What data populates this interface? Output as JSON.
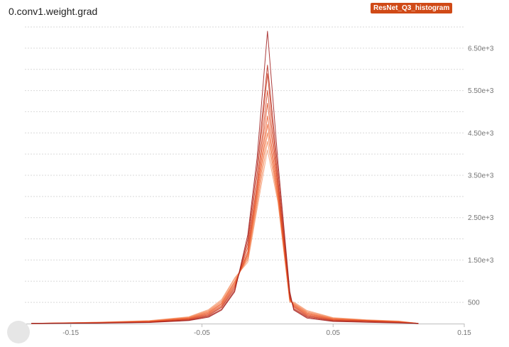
{
  "title": "0.conv1.weight.grad",
  "run_badge": "ResNet_Q3_histogram",
  "colors": {
    "badge_bg": "#d04a17",
    "series_light": "#f5a07a",
    "series_mid": "#ef5a2a",
    "series_dark": "#9e1a1a",
    "grid": "#d9d9d9",
    "tick_text": "#757575"
  },
  "chart_data": {
    "type": "line",
    "title": "0.conv1.weight.grad",
    "xlabel": "",
    "ylabel": "",
    "xlim": [
      -0.185,
      0.15
    ],
    "ylim": [
      0,
      7000
    ],
    "x_ticks": [
      -0.15,
      -0.05,
      0.05,
      0.15
    ],
    "x_tick_labels": [
      "-0.15",
      "-0.05",
      "0.05",
      "0.15"
    ],
    "y_ticks": [
      500,
      1500,
      2500,
      3500,
      4500,
      5500,
      6500
    ],
    "y_tick_labels": [
      "500",
      "1.50e+3",
      "2.50e+3",
      "3.50e+3",
      "4.50e+3",
      "5.50e+3",
      "6.50e+3"
    ],
    "grid": true,
    "y_axis_side": "right",
    "description_note": "",
    "series": [
      {
        "values": [
          [
            -0.18,
            5
          ],
          [
            -0.13,
            10
          ],
          [
            -0.09,
            25
          ],
          [
            -0.06,
            70
          ],
          [
            -0.045,
            150
          ],
          [
            -0.035,
            320
          ],
          [
            -0.025,
            750
          ],
          [
            -0.015,
            2100
          ],
          [
            -0.008,
            3900
          ],
          [
            0,
            6900
          ],
          [
            0.008,
            3800
          ],
          [
            0.017,
            760
          ],
          [
            0.02,
            320
          ],
          [
            0.03,
            130
          ],
          [
            0.05,
            50
          ],
          [
            0.075,
            30
          ],
          [
            0.1,
            15
          ],
          [
            0.115,
            5
          ]
        ]
      },
      {
        "values": [
          [
            -0.18,
            5
          ],
          [
            -0.13,
            12
          ],
          [
            -0.09,
            30
          ],
          [
            -0.06,
            80
          ],
          [
            -0.045,
            170
          ],
          [
            -0.035,
            340
          ],
          [
            -0.025,
            780
          ],
          [
            -0.015,
            2000
          ],
          [
            -0.008,
            3700
          ],
          [
            0,
            6100
          ],
          [
            0.008,
            3600
          ],
          [
            0.017,
            700
          ],
          [
            0.02,
            340
          ],
          [
            0.03,
            150
          ],
          [
            0.05,
            60
          ],
          [
            0.075,
            45
          ],
          [
            0.1,
            20
          ],
          [
            0.115,
            5
          ]
        ]
      },
      {
        "values": [
          [
            -0.18,
            5
          ],
          [
            -0.13,
            15
          ],
          [
            -0.09,
            35
          ],
          [
            -0.06,
            90
          ],
          [
            -0.045,
            190
          ],
          [
            -0.035,
            380
          ],
          [
            -0.025,
            820
          ],
          [
            -0.015,
            1900
          ],
          [
            -0.008,
            3500
          ],
          [
            0,
            5900
          ],
          [
            0.008,
            3400
          ],
          [
            0.017,
            650
          ],
          [
            0.02,
            360
          ],
          [
            0.03,
            170
          ],
          [
            0.05,
            70
          ],
          [
            0.075,
            50
          ],
          [
            0.1,
            25
          ],
          [
            0.115,
            5
          ]
        ]
      },
      {
        "values": [
          [
            -0.18,
            5
          ],
          [
            -0.13,
            18
          ],
          [
            -0.09,
            40
          ],
          [
            -0.06,
            100
          ],
          [
            -0.045,
            210
          ],
          [
            -0.035,
            400
          ],
          [
            -0.025,
            860
          ],
          [
            -0.015,
            1800
          ],
          [
            -0.008,
            3300
          ],
          [
            0,
            5500
          ],
          [
            0.008,
            3300
          ],
          [
            0.017,
            620
          ],
          [
            0.02,
            390
          ],
          [
            0.03,
            190
          ],
          [
            0.05,
            80
          ],
          [
            0.075,
            60
          ],
          [
            0.1,
            30
          ],
          [
            0.115,
            5
          ]
        ]
      },
      {
        "values": [
          [
            -0.18,
            5
          ],
          [
            -0.13,
            20
          ],
          [
            -0.09,
            45
          ],
          [
            -0.06,
            110
          ],
          [
            -0.045,
            230
          ],
          [
            -0.035,
            430
          ],
          [
            -0.025,
            900
          ],
          [
            -0.015,
            1700
          ],
          [
            -0.008,
            3200
          ],
          [
            0,
            5200
          ],
          [
            0.008,
            3200
          ],
          [
            0.017,
            600
          ],
          [
            0.02,
            410
          ],
          [
            0.03,
            210
          ],
          [
            0.05,
            90
          ],
          [
            0.075,
            65
          ],
          [
            0.1,
            35
          ],
          [
            0.115,
            5
          ]
        ]
      },
      {
        "values": [
          [
            -0.18,
            5
          ],
          [
            -0.13,
            22
          ],
          [
            -0.09,
            50
          ],
          [
            -0.06,
            120
          ],
          [
            -0.045,
            250
          ],
          [
            -0.035,
            460
          ],
          [
            -0.025,
            940
          ],
          [
            -0.015,
            1650
          ],
          [
            -0.008,
            3100
          ],
          [
            0,
            4900
          ],
          [
            0.008,
            3100
          ],
          [
            0.017,
            580
          ],
          [
            0.02,
            430
          ],
          [
            0.03,
            230
          ],
          [
            0.05,
            100
          ],
          [
            0.075,
            70
          ],
          [
            0.1,
            40
          ],
          [
            0.115,
            5
          ]
        ]
      },
      {
        "values": [
          [
            -0.18,
            5
          ],
          [
            -0.13,
            25
          ],
          [
            -0.09,
            55
          ],
          [
            -0.06,
            130
          ],
          [
            -0.045,
            270
          ],
          [
            -0.035,
            480
          ],
          [
            -0.025,
            980
          ],
          [
            -0.015,
            1600
          ],
          [
            -0.008,
            3000
          ],
          [
            0,
            4700
          ],
          [
            0.008,
            3000
          ],
          [
            0.017,
            560
          ],
          [
            0.02,
            450
          ],
          [
            0.03,
            250
          ],
          [
            0.05,
            110
          ],
          [
            0.075,
            75
          ],
          [
            0.1,
            45
          ],
          [
            0.115,
            5
          ]
        ]
      },
      {
        "values": [
          [
            -0.18,
            5
          ],
          [
            -0.13,
            27
          ],
          [
            -0.09,
            60
          ],
          [
            -0.06,
            140
          ],
          [
            -0.045,
            290
          ],
          [
            -0.035,
            510
          ],
          [
            -0.025,
            1000
          ],
          [
            -0.015,
            1550
          ],
          [
            -0.008,
            2900
          ],
          [
            0,
            4500
          ],
          [
            0.008,
            2950
          ],
          [
            0.017,
            540
          ],
          [
            0.02,
            470
          ],
          [
            0.03,
            270
          ],
          [
            0.05,
            120
          ],
          [
            0.075,
            80
          ],
          [
            0.1,
            50
          ],
          [
            0.115,
            5
          ]
        ]
      },
      {
        "values": [
          [
            -0.18,
            5
          ],
          [
            -0.13,
            30
          ],
          [
            -0.09,
            65
          ],
          [
            -0.06,
            150
          ],
          [
            -0.045,
            310
          ],
          [
            -0.035,
            540
          ],
          [
            -0.025,
            1050
          ],
          [
            -0.015,
            1500
          ],
          [
            -0.008,
            2800
          ],
          [
            0,
            4300
          ],
          [
            0.008,
            2900
          ],
          [
            0.017,
            520
          ],
          [
            0.02,
            490
          ],
          [
            0.03,
            290
          ],
          [
            0.05,
            130
          ],
          [
            0.075,
            85
          ],
          [
            0.1,
            55
          ],
          [
            0.115,
            5
          ]
        ]
      },
      {
        "values": [
          [
            -0.18,
            5
          ],
          [
            -0.13,
            32
          ],
          [
            -0.09,
            70
          ],
          [
            -0.06,
            160
          ],
          [
            -0.045,
            330
          ],
          [
            -0.035,
            570
          ],
          [
            -0.025,
            1080
          ],
          [
            -0.015,
            1450
          ],
          [
            -0.008,
            2700
          ],
          [
            0,
            4100
          ],
          [
            0.008,
            2850
          ],
          [
            0.017,
            500
          ],
          [
            0.02,
            510
          ],
          [
            0.03,
            310
          ],
          [
            0.05,
            140
          ],
          [
            0.075,
            90
          ],
          [
            0.1,
            60
          ],
          [
            0.115,
            5
          ]
        ]
      }
    ]
  }
}
